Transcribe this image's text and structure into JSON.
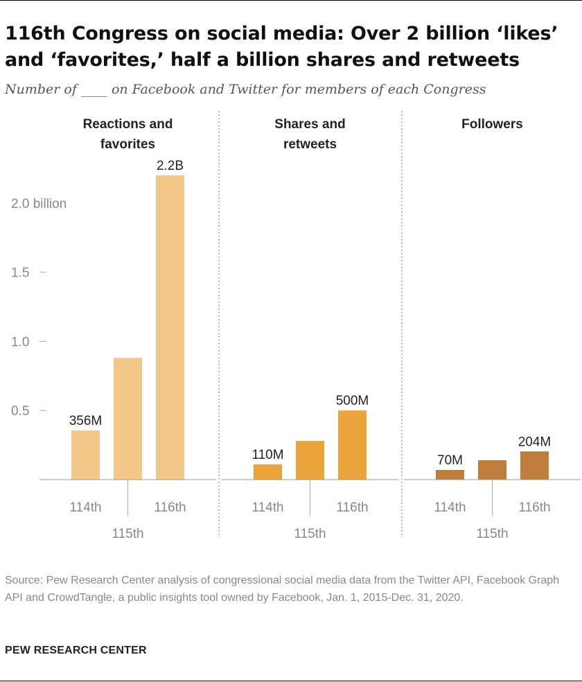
{
  "title": "116th Congress on social media: Over 2 billion ‘likes’ and ‘favorites,’ half a billion shares and retweets",
  "subtitle": "Number of ____ on Facebook and Twitter for members of each Congress",
  "source": "Source: Pew Research Center analysis of congressional social media data from the Twitter API, Facebook Graph API and CrowdTangle, a public insights tool owned by Facebook, Jan. 1, 2015-Dec. 31, 2020.",
  "brand": "PEW RESEARCH CENTER",
  "chart_data": {
    "type": "bar",
    "categories": [
      "114th",
      "115th",
      "116th"
    ],
    "ylim": [
      0,
      2.2
    ],
    "y_ticks": [
      {
        "value": 0.5,
        "label": "0.5"
      },
      {
        "value": 1.0,
        "label": "1.0"
      },
      {
        "value": 1.5,
        "label": "1.5"
      },
      {
        "value": 2.0,
        "label": "2.0 billion"
      }
    ],
    "grid": false,
    "series": [
      {
        "name": "Reactions and favorites",
        "title_lines": [
          "Reactions and",
          "favorites"
        ],
        "color": "#F2C787",
        "values": [
          0.356,
          0.88,
          2.2
        ],
        "labels": [
          "356M",
          "",
          "2.2B"
        ]
      },
      {
        "name": "Shares and retweets",
        "title_lines": [
          "Shares and",
          "retweets"
        ],
        "color": "#EBA43A",
        "values": [
          0.11,
          0.28,
          0.5
        ],
        "labels": [
          "110M",
          "",
          "500M"
        ]
      },
      {
        "name": "Followers",
        "title_lines": [
          "Followers"
        ],
        "color": "#BE7D3A",
        "values": [
          0.07,
          0.14,
          0.204
        ],
        "labels": [
          "70M",
          "",
          "204M"
        ]
      }
    ]
  }
}
